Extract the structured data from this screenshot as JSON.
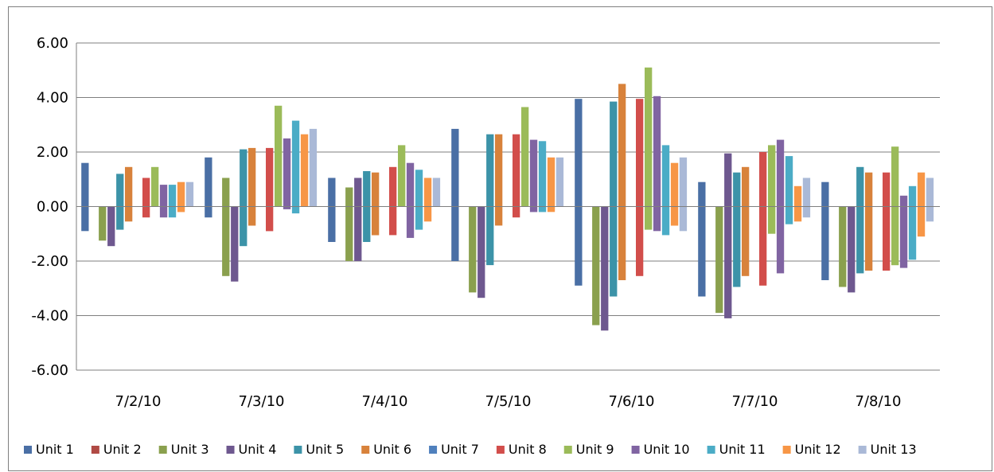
{
  "chart_data": {
    "type": "bar",
    "subtype": "floating-range",
    "categories": [
      "7/2/10",
      "7/3/10",
      "7/4/10",
      "7/5/10",
      "7/6/10",
      "7/7/10",
      "7/8/10"
    ],
    "yticks": [
      "6.00",
      "4.00",
      "2.00",
      "0.00",
      "-2.00",
      "-4.00",
      "-6.00"
    ],
    "ylim": [
      -6,
      6
    ],
    "grid": true,
    "legend": "bottom",
    "series": [
      {
        "name": "Unit 1",
        "color": "#4a6fa5",
        "ranges": [
          [
            -0.9,
            1.6
          ],
          [
            -0.4,
            1.8
          ],
          [
            -1.3,
            1.05
          ],
          [
            -2.0,
            2.85
          ],
          [
            -2.9,
            3.95
          ],
          [
            -3.3,
            0.9
          ],
          [
            -2.7,
            0.9
          ]
        ]
      },
      {
        "name": "Unit 2",
        "color": "#b04a44",
        "ranges": [
          [
            0,
            0
          ],
          [
            0,
            0
          ],
          [
            0,
            0
          ],
          [
            0,
            0
          ],
          [
            0,
            0
          ],
          [
            0,
            0
          ],
          [
            0,
            0
          ]
        ]
      },
      {
        "name": "Unit 3",
        "color": "#8aa04e",
        "ranges": [
          [
            -1.25,
            0
          ],
          [
            -2.55,
            1.05
          ],
          [
            -2.0,
            0.7
          ],
          [
            -3.15,
            0
          ],
          [
            -4.35,
            0
          ],
          [
            -3.9,
            0
          ],
          [
            -2.95,
            0
          ]
        ]
      },
      {
        "name": "Unit 4",
        "color": "#6e588f",
        "ranges": [
          [
            -1.45,
            0
          ],
          [
            -2.75,
            0
          ],
          [
            -2.0,
            1.05
          ],
          [
            -3.35,
            0
          ],
          [
            -4.55,
            0
          ],
          [
            -4.1,
            1.95
          ],
          [
            -3.15,
            0
          ]
        ]
      },
      {
        "name": "Unit 5",
        "color": "#3c93a8",
        "ranges": [
          [
            -0.85,
            1.2
          ],
          [
            -1.45,
            2.1
          ],
          [
            -1.3,
            1.3
          ],
          [
            -2.15,
            2.65
          ],
          [
            -3.3,
            3.85
          ],
          [
            -2.95,
            1.25
          ],
          [
            -2.45,
            1.45
          ]
        ]
      },
      {
        "name": "Unit 6",
        "color": "#d8823b",
        "ranges": [
          [
            -0.55,
            1.45
          ],
          [
            -0.7,
            2.15
          ],
          [
            -1.05,
            1.25
          ],
          [
            -0.7,
            2.65
          ],
          [
            -2.7,
            4.5
          ],
          [
            -2.55,
            1.45
          ],
          [
            -2.35,
            1.25
          ]
        ]
      },
      {
        "name": "Unit 7",
        "color": "#4f80bd",
        "ranges": [
          [
            0,
            0
          ],
          [
            0,
            0
          ],
          [
            0,
            0
          ],
          [
            0,
            0
          ],
          [
            0,
            0
          ],
          [
            0,
            0
          ],
          [
            0,
            0
          ]
        ]
      },
      {
        "name": "Unit 8",
        "color": "#d24e4b",
        "ranges": [
          [
            -0.4,
            1.05
          ],
          [
            -0.9,
            2.15
          ],
          [
            -1.05,
            1.45
          ],
          [
            -0.4,
            2.65
          ],
          [
            -2.55,
            3.95
          ],
          [
            -2.9,
            2.0
          ],
          [
            -2.35,
            1.25
          ]
        ]
      },
      {
        "name": "Unit 9",
        "color": "#9bbb59",
        "ranges": [
          [
            0,
            1.45
          ],
          [
            0,
            3.7
          ],
          [
            0,
            2.25
          ],
          [
            0,
            3.65
          ],
          [
            -0.85,
            5.1
          ],
          [
            -1.0,
            2.25
          ],
          [
            -2.15,
            2.2
          ]
        ]
      },
      {
        "name": "Unit 10",
        "color": "#8064a2",
        "ranges": [
          [
            -0.4,
            0.8
          ],
          [
            -0.1,
            2.5
          ],
          [
            -1.15,
            1.6
          ],
          [
            -0.2,
            2.45
          ],
          [
            -0.9,
            4.05
          ],
          [
            -2.45,
            2.45
          ],
          [
            -2.25,
            0.4
          ]
        ]
      },
      {
        "name": "Unit 11",
        "color": "#4bacc6",
        "ranges": [
          [
            -0.4,
            0.8
          ],
          [
            -0.25,
            3.15
          ],
          [
            -0.85,
            1.35
          ],
          [
            -0.2,
            2.4
          ],
          [
            -1.05,
            2.25
          ],
          [
            -0.65,
            1.85
          ],
          [
            -1.95,
            0.75
          ]
        ]
      },
      {
        "name": "Unit 12",
        "color": "#f79646",
        "ranges": [
          [
            -0.2,
            0.9
          ],
          [
            0,
            2.65
          ],
          [
            -0.55,
            1.05
          ],
          [
            -0.2,
            1.8
          ],
          [
            -0.7,
            1.6
          ],
          [
            -0.55,
            0.75
          ],
          [
            -1.1,
            1.25
          ]
        ]
      },
      {
        "name": "Unit 13",
        "color": "#aab9d7",
        "ranges": [
          [
            0,
            0.9
          ],
          [
            0,
            2.85
          ],
          [
            0,
            1.05
          ],
          [
            0,
            1.8
          ],
          [
            -0.9,
            1.8
          ],
          [
            -0.4,
            1.05
          ],
          [
            -0.55,
            1.05
          ]
        ]
      }
    ]
  }
}
